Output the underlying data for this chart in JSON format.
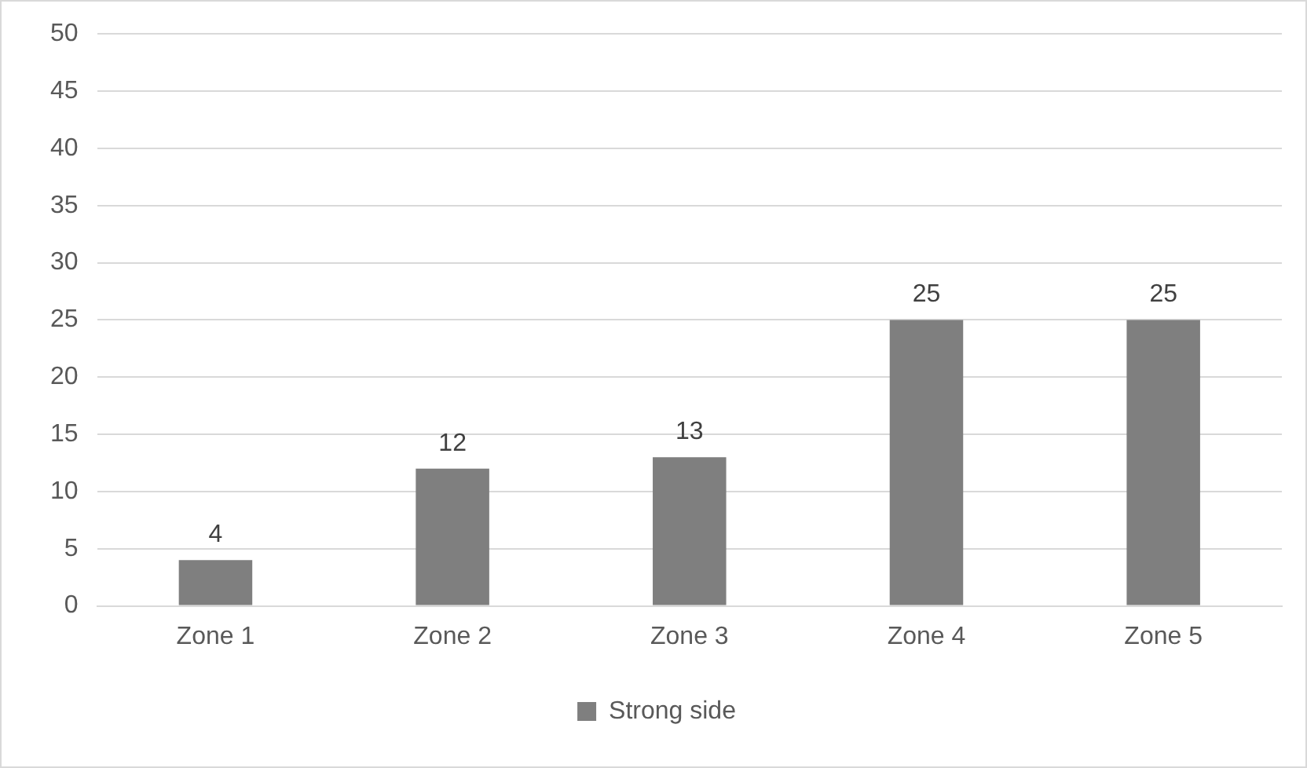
{
  "chart_data": {
    "type": "bar",
    "categories": [
      "Zone 1",
      "Zone 2",
      "Zone 3",
      "Zone 4",
      "Zone 5"
    ],
    "series": [
      {
        "name": "Strong side",
        "color": "#7f7f7f",
        "values": [
          4,
          12,
          13,
          25,
          25
        ]
      }
    ],
    "ylim": [
      0,
      50
    ],
    "yticks": [
      0,
      5,
      10,
      15,
      20,
      25,
      30,
      35,
      40,
      45,
      50
    ],
    "grid": "y",
    "legend": "bottom",
    "data_labels": true
  }
}
